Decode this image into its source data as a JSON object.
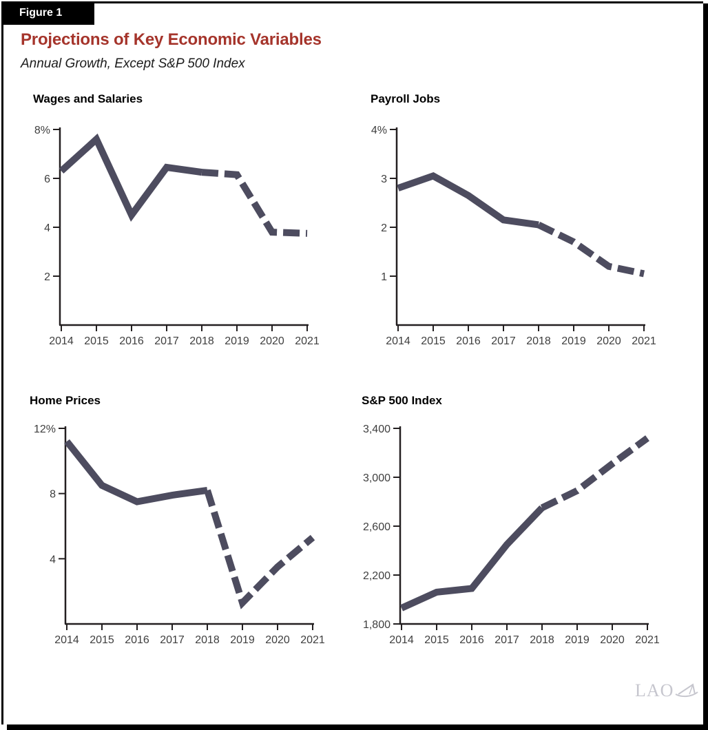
{
  "figure_tag": "Figure 1",
  "title": "Projections of Key Economic Variables",
  "subtitle": "Annual Growth, Except S&P 500 Index",
  "logo": {
    "text": "LAO"
  },
  "colors": {
    "title_red": "#A5342B",
    "line": "#4D4C5F",
    "axis": "#231F20",
    "tick_text": "#3E3E3E",
    "logo_gray": "#C6C6CE"
  },
  "chart_data": [
    {
      "type": "line",
      "title": "Wages and Salaries",
      "x": [
        2014,
        2015,
        2016,
        2017,
        2018,
        2019,
        2020,
        2021
      ],
      "values": [
        6.3,
        7.6,
        4.5,
        6.45,
        6.25,
        6.15,
        3.8,
        3.75
      ],
      "ylim": [
        0,
        8
      ],
      "ytick_values": [
        2,
        4,
        6,
        8
      ],
      "ytick_labels": [
        "2",
        "4",
        "6",
        "8%"
      ],
      "projection_start": 2018,
      "projection_style": "dashed",
      "xlabel": "",
      "ylabel": ""
    },
    {
      "type": "line",
      "title": "Payroll Jobs",
      "x": [
        2014,
        2015,
        2016,
        2017,
        2018,
        2019,
        2020,
        2021
      ],
      "values": [
        2.8,
        3.05,
        2.65,
        2.15,
        2.05,
        1.7,
        1.2,
        1.05
      ],
      "ylim": [
        0,
        4
      ],
      "ytick_values": [
        1,
        2,
        3,
        4
      ],
      "ytick_labels": [
        "1",
        "2",
        "3",
        "4%"
      ],
      "projection_start": 2018,
      "projection_style": "dashed",
      "xlabel": "",
      "ylabel": ""
    },
    {
      "type": "line",
      "title": "Home Prices",
      "x": [
        2014,
        2015,
        2016,
        2017,
        2018,
        2019,
        2020,
        2021
      ],
      "values": [
        11.2,
        8.5,
        7.5,
        7.9,
        8.2,
        1.3,
        3.5,
        5.3
      ],
      "ylim": [
        0,
        12
      ],
      "ytick_values": [
        4,
        8,
        12
      ],
      "ytick_labels": [
        "4",
        "8",
        "12%"
      ],
      "projection_start": 2018,
      "projection_style": "dashed",
      "xlabel": "",
      "ylabel": ""
    },
    {
      "type": "line",
      "title": "S&P 500 Index",
      "x": [
        2014,
        2015,
        2016,
        2017,
        2018,
        2019,
        2020,
        2021
      ],
      "values": [
        1930,
        2060,
        2090,
        2450,
        2750,
        2890,
        3110,
        3320
      ],
      "ylim": [
        1800,
        3400
      ],
      "ytick_values": [
        1800,
        2200,
        2600,
        3000,
        3400
      ],
      "ytick_labels": [
        "1,800",
        "2,200",
        "2,600",
        "3,000",
        "3,400"
      ],
      "projection_start": 2018,
      "projection_style": "dashed",
      "xlabel": "",
      "ylabel": ""
    }
  ]
}
